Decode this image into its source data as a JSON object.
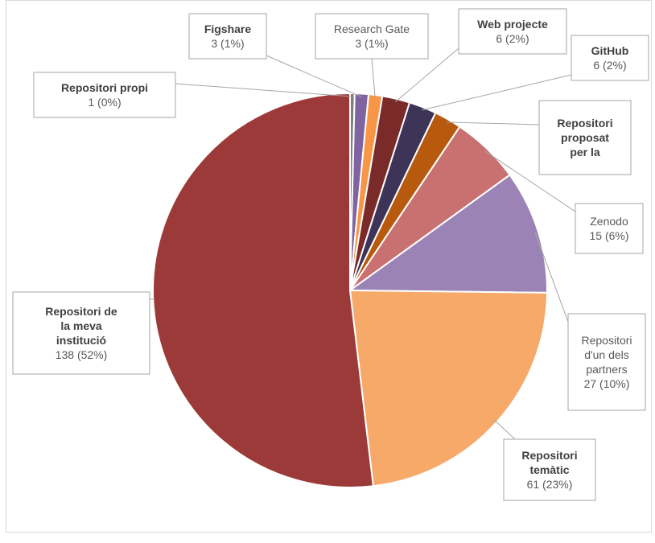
{
  "chart_data": {
    "type": "pie",
    "slices": [
      {
        "label": "Repositori propi",
        "value": 1,
        "percent_label": "1 (0%)",
        "color": "#7f7f7f",
        "bold": true
      },
      {
        "label": "Figshare",
        "value": 3,
        "percent_label": "3 (1%)",
        "color": "#8064a2",
        "bold": true
      },
      {
        "label": "Research Gate",
        "value": 3,
        "percent_label": "3 (1%)",
        "color": "#f79646",
        "bold": false
      },
      {
        "label": "Web projecte",
        "value": 6,
        "percent_label": "6 (2%)",
        "color": "#7b2a2a",
        "bold": true
      },
      {
        "label": "GitHub",
        "value": 6,
        "percent_label": "6 (2%)",
        "color": "#3d3458",
        "bold": true
      },
      {
        "label": "Repositori proposat per la",
        "value": 6,
        "percent_label": "",
        "color": "#b85a0d",
        "bold": true
      },
      {
        "label": "Zenodo",
        "value": 15,
        "percent_label": "15 (6%)",
        "color": "#c97170",
        "bold": false
      },
      {
        "label": "Repositori d'un dels partners",
        "value": 27,
        "percent_label": "27 (10%)",
        "color": "#9b84b5",
        "bold": false
      },
      {
        "label": "Repositori temàtic",
        "value": 61,
        "percent_label": "61 (23%)",
        "color": "#f7a96a",
        "bold": true
      },
      {
        "label": "Repositori de la meva institució",
        "value": 138,
        "percent_label": "138 (52%)",
        "color": "#9b3a38",
        "bold": true
      }
    ],
    "legend": "none",
    "start_angle_deg": 0,
    "direction": "clockwise"
  },
  "labels": {
    "repositori_propi": {
      "lines": [
        "Repositori propi"
      ],
      "value": "1 (0%)"
    },
    "figshare": {
      "lines": [
        "Figshare"
      ],
      "value": "3 (1%)"
    },
    "research_gate": {
      "lines": [
        "Research Gate"
      ],
      "value": "3 (1%)"
    },
    "web_projecte": {
      "lines": [
        "Web projecte"
      ],
      "value": "6 (2%)"
    },
    "github": {
      "lines": [
        "GitHub"
      ],
      "value": "6 (2%)"
    },
    "proposat": {
      "lines": [
        "Repositori",
        "proposat",
        "per la"
      ],
      "value": ""
    },
    "zenodo": {
      "lines": [
        "Zenodo"
      ],
      "value": "15 (6%)"
    },
    "partners": {
      "lines": [
        "Repositori",
        "d'un dels",
        "partners"
      ],
      "value": "27 (10%)"
    },
    "tematic": {
      "lines": [
        "Repositori",
        "temàtic"
      ],
      "value": "61 (23%)"
    },
    "institucio": {
      "lines": [
        "Repositori de",
        "la meva",
        "institució"
      ],
      "value": "138 (52%)"
    }
  }
}
